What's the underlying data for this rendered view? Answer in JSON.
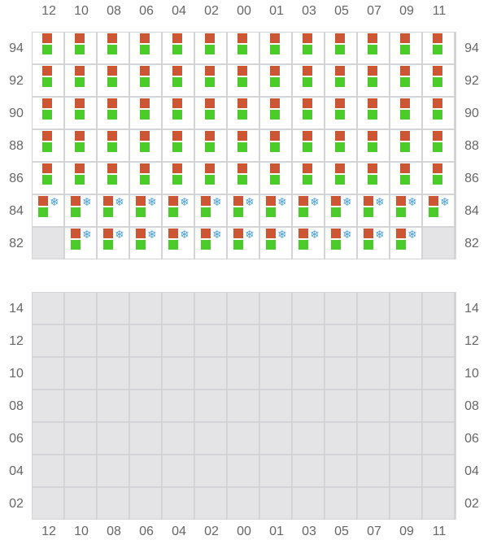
{
  "columns": [
    "12",
    "10",
    "08",
    "06",
    "04",
    "02",
    "00",
    "01",
    "03",
    "05",
    "07",
    "09",
    "11"
  ],
  "colors": {
    "orange": "#cc5533",
    "green": "#4ccc2a",
    "snowflake": "#4a9be0",
    "empty": "#e4e4e6"
  },
  "top_grid": {
    "rows": [
      {
        "label": "94",
        "cells": [
          "ok",
          "ok",
          "ok",
          "ok",
          "ok",
          "ok",
          "ok",
          "ok",
          "ok",
          "ok",
          "ok",
          "ok",
          "ok"
        ]
      },
      {
        "label": "92",
        "cells": [
          "ok",
          "ok",
          "ok",
          "ok",
          "ok",
          "ok",
          "ok",
          "ok",
          "ok",
          "ok",
          "ok",
          "ok",
          "ok"
        ]
      },
      {
        "label": "90",
        "cells": [
          "ok",
          "ok",
          "ok",
          "ok",
          "ok",
          "ok",
          "ok",
          "ok",
          "ok",
          "ok",
          "ok",
          "ok",
          "ok"
        ]
      },
      {
        "label": "88",
        "cells": [
          "ok",
          "ok",
          "ok",
          "ok",
          "ok",
          "ok",
          "ok",
          "ok",
          "ok",
          "ok",
          "ok",
          "ok",
          "ok"
        ]
      },
      {
        "label": "86",
        "cells": [
          "ok",
          "ok",
          "ok",
          "ok",
          "ok",
          "ok",
          "ok",
          "ok",
          "ok",
          "ok",
          "ok",
          "ok",
          "ok"
        ]
      },
      {
        "label": "84",
        "cells": [
          "snow",
          "snow",
          "snow",
          "snow",
          "snow",
          "snow",
          "snow",
          "snow",
          "snow",
          "snow",
          "snow",
          "snow",
          "snow"
        ]
      },
      {
        "label": "82",
        "cells": [
          "empty",
          "snow",
          "snow",
          "snow",
          "snow",
          "snow",
          "snow",
          "snow",
          "snow",
          "snow",
          "snow",
          "snow",
          "empty"
        ]
      }
    ]
  },
  "bottom_grid": {
    "rows": [
      {
        "label": "14"
      },
      {
        "label": "12"
      },
      {
        "label": "10"
      },
      {
        "label": "08"
      },
      {
        "label": "06"
      },
      {
        "label": "04"
      },
      {
        "label": "02"
      }
    ]
  },
  "icons": {
    "snow": "snowflake-icon",
    "orange": "orange-square-icon",
    "green": "green-square-icon"
  }
}
